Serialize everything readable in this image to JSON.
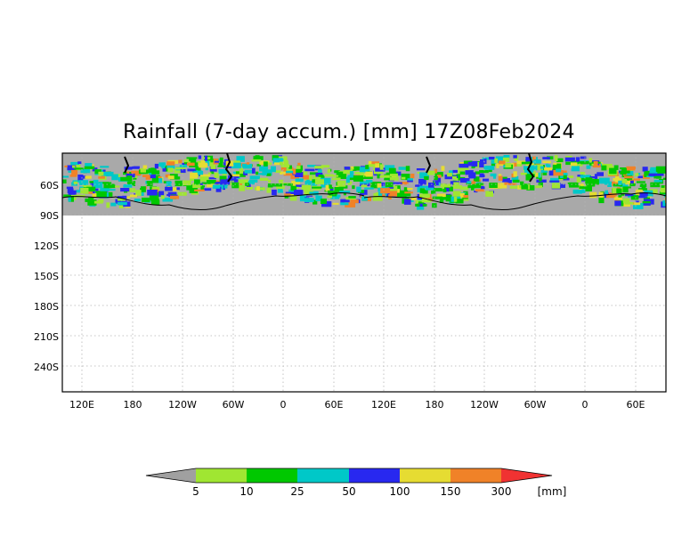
{
  "title": "Rainfall (7-day accum.) [mm] 17Z08Feb2024",
  "lat_labels": [
    "60S",
    "90S",
    "120S",
    "150S",
    "180S",
    "210S",
    "240S"
  ],
  "lon_labels": [
    "120E",
    "180",
    "120W",
    "60W",
    "0",
    "60E",
    "120E",
    "180",
    "120W",
    "60W",
    "0",
    "60E"
  ],
  "colorbar": {
    "unit": "[mm]",
    "thresholds": [
      "5",
      "10",
      "25",
      "50",
      "100",
      "150",
      "300"
    ],
    "colors": [
      "#a0a0a0",
      "#a0e632",
      "#00c800",
      "#00c8c8",
      "#2828f0",
      "#e6dc32",
      "#f08228",
      "#f03232"
    ]
  },
  "colors": {
    "land_mask": "#a9a9a9",
    "grid": "#b4b4b4",
    "coast": "#000000"
  }
}
